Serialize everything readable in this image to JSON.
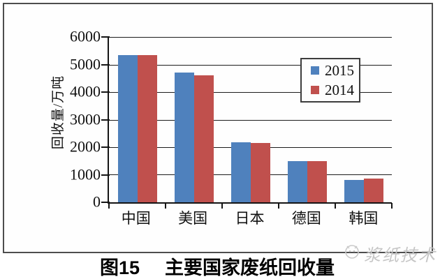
{
  "figure": {
    "caption_prefix": "图15",
    "caption_title": "主要国家废纸回收量"
  },
  "watermark": {
    "text": "浆纸技术",
    "icon": "face-logo"
  },
  "colors": {
    "series_2015": "#4f81bd",
    "series_2014": "#c0504d",
    "axis": "#141414",
    "gridline": "#1c1c1c",
    "frame_border": "#4d4d4d",
    "legend_border": "#3c3c3c",
    "watermark": "#c6c6c6",
    "background": "#ffffff"
  },
  "chart_data": {
    "type": "bar",
    "title": "图15 主要国家废纸回收量",
    "categories": [
      "中国",
      "美国",
      "日本",
      "德国",
      "韩国"
    ],
    "series": [
      {
        "name": "2015",
        "color": "#4f81bd",
        "values": [
          5340,
          4700,
          2170,
          1490,
          810
        ]
      },
      {
        "name": "2014",
        "color": "#c0504d",
        "values": [
          5340,
          4600,
          2150,
          1500,
          850
        ]
      }
    ],
    "xlabel": "",
    "ylabel": "回收量/万吨",
    "ylim": [
      0,
      6000
    ],
    "y_tick_step": 1000,
    "y_ticks": [
      "6000",
      "5000",
      "4000",
      "3000",
      "2000",
      "1000",
      "0"
    ],
    "grid": "horizontal",
    "legend": [
      "2015",
      "2014"
    ],
    "legend_position": "upper-right-inside"
  }
}
